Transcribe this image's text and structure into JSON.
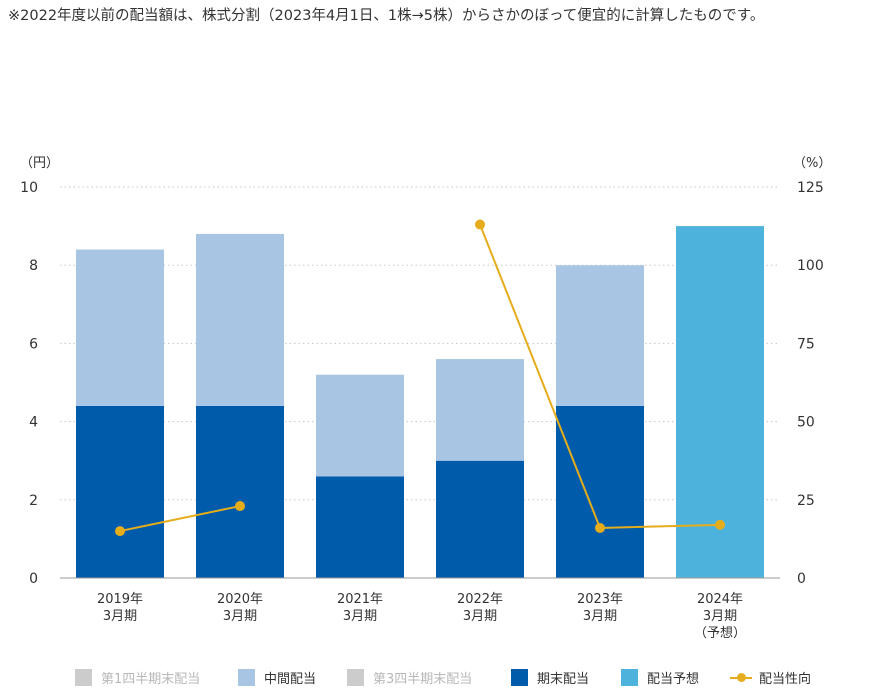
{
  "note": "※2022年度以前の配当額は、株式分割（2023年4月1日、1株→5株）からさかのぼって便宜的に計算したものです。",
  "chart_data": {
    "type": "bar",
    "stacked": true,
    "categories": [
      [
        "2019年",
        "3月期"
      ],
      [
        "2020年",
        "3月期"
      ],
      [
        "2021年",
        "3月期"
      ],
      [
        "2022年",
        "3月期"
      ],
      [
        "2023年",
        "3月期"
      ],
      [
        "2024年",
        "3月期",
        "（予想）"
      ]
    ],
    "y_left": {
      "label": "（円）",
      "lim": [
        0,
        10
      ],
      "ticks": [
        0,
        2,
        4,
        6,
        8,
        10
      ]
    },
    "y_right": {
      "label": "（%）",
      "lim": [
        0,
        125
      ],
      "ticks": [
        0,
        25,
        50,
        75,
        100,
        125
      ]
    },
    "grid": "horizontal-dotted",
    "legend_position": "bottom",
    "series": [
      {
        "name": "第1四半期末配当",
        "color": "#cccccc",
        "axis": "left",
        "values": [
          0,
          0,
          0,
          0,
          0,
          0
        ],
        "muted": true
      },
      {
        "name": "中間配当",
        "color": "#a8c6e4",
        "axis": "left",
        "values": [
          4.0,
          4.4,
          2.6,
          2.6,
          3.6,
          0
        ],
        "stack_order": 2
      },
      {
        "name": "第3四半期末配当",
        "color": "#cccccc",
        "axis": "left",
        "values": [
          0,
          0,
          0,
          0,
          0,
          0
        ],
        "muted": true
      },
      {
        "name": "期末配当",
        "color": "#005bab",
        "axis": "left",
        "values": [
          4.4,
          4.4,
          2.6,
          3.0,
          4.4,
          0
        ],
        "stack_order": 1
      },
      {
        "name": "配当予想",
        "color": "#4eb3dc",
        "axis": "left",
        "values": [
          0,
          0,
          0,
          0,
          0,
          9.0
        ],
        "stack_order": 3
      },
      {
        "name": "配当性向",
        "color": "#e5ad1b",
        "axis": "right",
        "type": "line",
        "values": [
          15,
          23,
          null,
          113,
          16,
          17
        ]
      }
    ]
  }
}
